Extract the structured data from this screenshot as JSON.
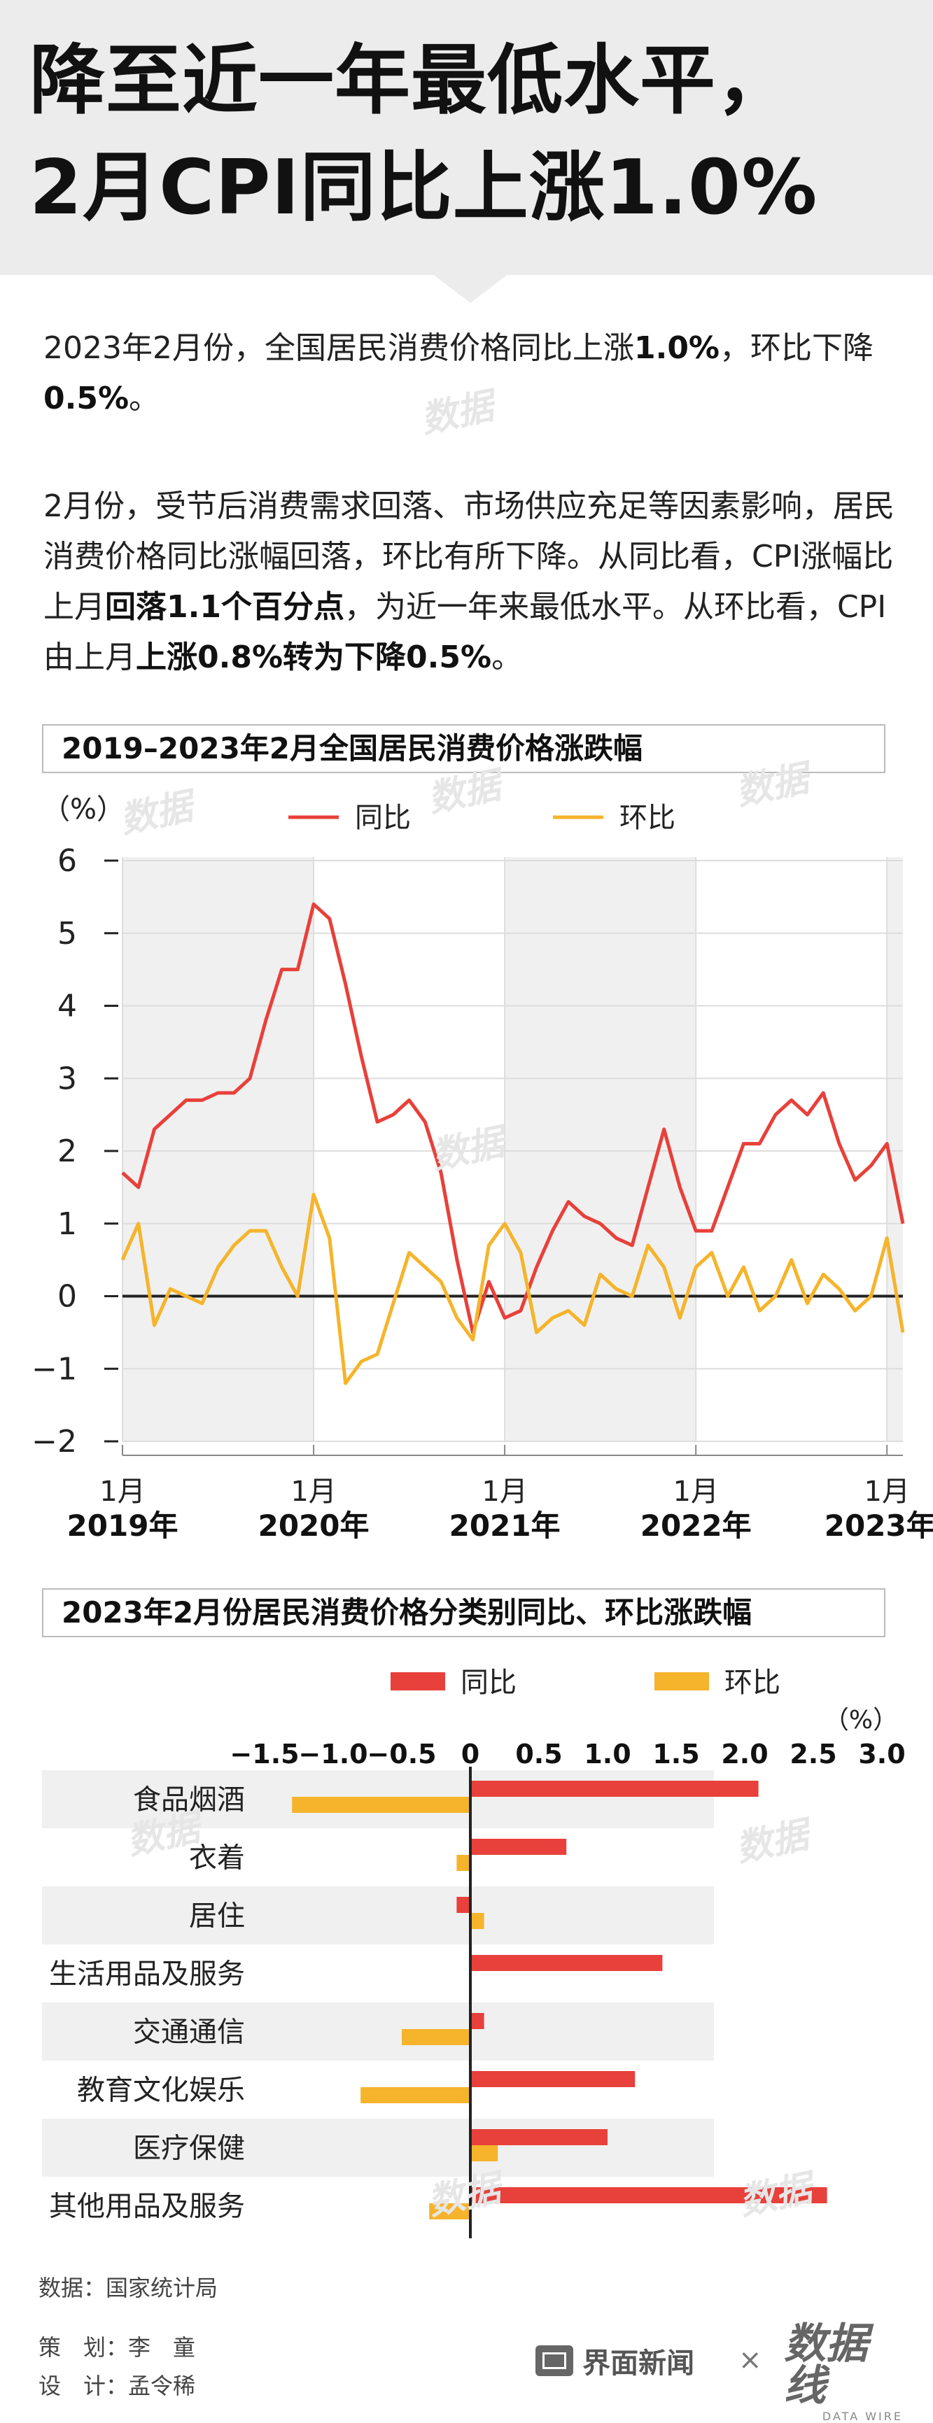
{
  "header": {
    "title_line1": "降至近一年最低水平，",
    "title_line2": "2月CPI同比上涨1.0%"
  },
  "intro": {
    "p1_a": "2023年2月份，全国居民消费价格同比上涨",
    "p1_b": "1.0%",
    "p1_c": "，环比下降",
    "p1_d": "0.5%",
    "p1_e": "。",
    "p2_a": "2月份，受节后消费需求回落、市场供应充足等因素影响，居民消费价格同比涨幅回落，环比有所下降。从同比看，CPI涨幅比上月",
    "p2_b": "回落1.1个百分点",
    "p2_c": "，为近一年来最低水平。从环比看，CPI由上月",
    "p2_d": "上涨0.8%转为下降0.5%",
    "p2_e": "。"
  },
  "colors": {
    "yoy": "#e8403a",
    "mom": "#f5b42b",
    "band": "#f0f0f0"
  },
  "watermark_text": "数据",
  "chart_data": [
    {
      "type": "line",
      "title": "2019–2023年2月全国居民消费价格涨跌幅",
      "ylabel": "（%）",
      "ylim": [
        -2,
        6
      ],
      "yticks": [
        "6",
        "5",
        "4",
        "3",
        "2",
        "1",
        "0",
        "−1",
        "−2"
      ],
      "x_tick_label": "1月",
      "year_labels": [
        "2019年",
        "2020年",
        "2021年",
        "2022年",
        "2023年"
      ],
      "series": [
        {
          "name": "同比",
          "values": [
            1.7,
            1.5,
            2.3,
            2.5,
            2.7,
            2.7,
            2.8,
            2.8,
            3.0,
            3.8,
            4.5,
            4.5,
            5.4,
            5.2,
            4.3,
            3.3,
            2.4,
            2.5,
            2.7,
            2.4,
            1.7,
            0.5,
            -0.5,
            0.2,
            -0.3,
            -0.2,
            0.4,
            0.9,
            1.3,
            1.1,
            1.0,
            0.8,
            0.7,
            1.5,
            2.3,
            1.5,
            0.9,
            0.9,
            1.5,
            2.1,
            2.1,
            2.5,
            2.7,
            2.5,
            2.8,
            2.1,
            1.6,
            1.8,
            2.1,
            1.0
          ]
        },
        {
          "name": "环比",
          "values": [
            0.5,
            1.0,
            -0.4,
            0.1,
            0.0,
            -0.1,
            0.4,
            0.7,
            0.9,
            0.9,
            0.4,
            0.0,
            1.4,
            0.8,
            -1.2,
            -0.9,
            -0.8,
            -0.1,
            0.6,
            0.4,
            0.2,
            -0.3,
            -0.6,
            0.7,
            1.0,
            0.6,
            -0.5,
            -0.3,
            -0.2,
            -0.4,
            0.3,
            0.1,
            0.0,
            0.7,
            0.4,
            -0.3,
            0.4,
            0.6,
            0.0,
            0.4,
            -0.2,
            0.0,
            0.5,
            -0.1,
            0.3,
            0.1,
            -0.2,
            0.0,
            0.8,
            -0.5
          ]
        }
      ]
    },
    {
      "type": "bar",
      "title": "2023年2月份居民消费价格分类别同比、环比涨跌幅",
      "unit": "（%）",
      "xlim": [
        -1.5,
        3.0
      ],
      "xticks": [
        "−1.5",
        "−1.0",
        "−0.5",
        "0",
        "0.5",
        "1.0",
        "1.5",
        "2.0",
        "2.5",
        "3.0"
      ],
      "categories": [
        "食品烟酒",
        "衣着",
        "居住",
        "生活用品及服务",
        "交通通信",
        "教育文化娱乐",
        "医疗保健",
        "其他用品及服务"
      ],
      "series": [
        {
          "name": "同比",
          "values": [
            2.1,
            0.7,
            -0.1,
            1.4,
            0.1,
            1.2,
            1.0,
            2.6
          ]
        },
        {
          "name": "环比",
          "values": [
            -1.3,
            -0.1,
            0.1,
            0.0,
            -0.5,
            -0.8,
            0.2,
            -0.3
          ]
        }
      ]
    }
  ],
  "footer": {
    "source": "数据：国家统计局",
    "planner": "策　划：李　童",
    "designer": "设　计：孟令稀",
    "brand": "界面新闻",
    "times": "×",
    "brand2": "数据线",
    "brand2_sub": "DATA WIRE"
  }
}
